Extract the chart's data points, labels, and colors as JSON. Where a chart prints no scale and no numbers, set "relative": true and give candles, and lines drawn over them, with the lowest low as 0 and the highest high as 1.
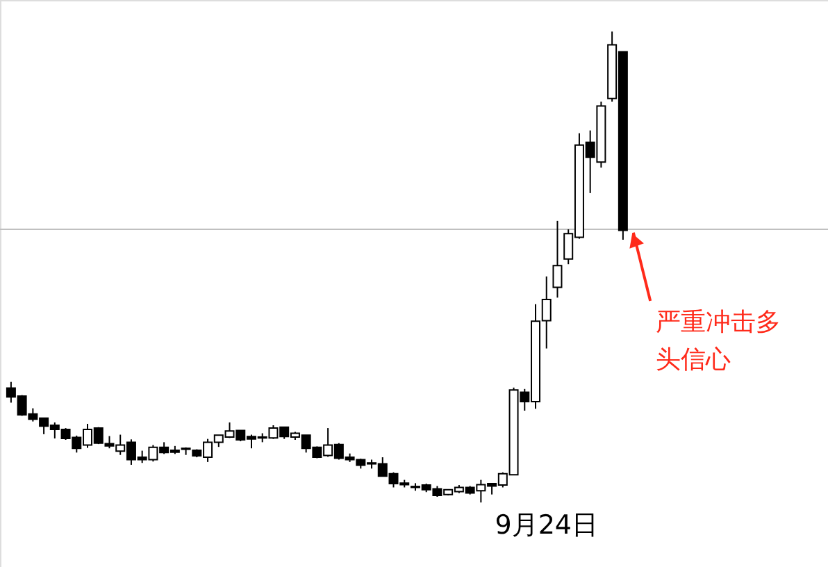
{
  "chart_data": {
    "type": "candlestick",
    "relative": true,
    "categories": [
      null,
      null,
      null,
      null,
      null,
      null,
      null,
      null,
      null,
      null,
      null,
      null,
      null,
      null,
      null,
      null,
      null,
      null,
      null,
      null,
      null,
      null,
      null,
      null,
      null,
      null,
      null,
      null,
      null,
      null,
      null,
      null,
      null,
      null,
      null,
      null,
      null,
      null,
      null,
      null,
      null,
      null,
      null,
      null,
      null,
      null,
      null,
      null,
      null,
      "9月24日",
      null,
      null,
      null,
      null,
      null,
      null,
      null
    ],
    "ohlc": [
      [
        0.243,
        0.256,
        0.212,
        0.224
      ],
      [
        0.226,
        0.228,
        0.184,
        0.186
      ],
      [
        0.188,
        0.2,
        0.172,
        0.177
      ],
      [
        0.179,
        0.179,
        0.145,
        0.162
      ],
      [
        0.164,
        0.17,
        0.136,
        0.155
      ],
      [
        0.155,
        0.158,
        0.133,
        0.136
      ],
      [
        0.138,
        0.142,
        0.106,
        0.115
      ],
      [
        0.122,
        0.167,
        0.116,
        0.155
      ],
      [
        0.158,
        0.16,
        0.124,
        0.126
      ],
      [
        0.125,
        0.141,
        0.115,
        0.12
      ],
      [
        0.109,
        0.144,
        0.101,
        0.122
      ],
      [
        0.128,
        0.134,
        0.08,
        0.091
      ],
      [
        0.096,
        0.11,
        0.084,
        0.091
      ],
      [
        0.091,
        0.122,
        0.087,
        0.117
      ],
      [
        0.117,
        0.128,
        0.103,
        0.106
      ],
      [
        0.111,
        0.12,
        0.103,
        0.107
      ],
      [
        0.115,
        0.117,
        0.101,
        0.113
      ],
      [
        0.111,
        0.113,
        0.096,
        0.099
      ],
      [
        0.096,
        0.135,
        0.086,
        0.128
      ],
      [
        0.128,
        0.143,
        0.118,
        0.143
      ],
      [
        0.139,
        0.17,
        0.137,
        0.152
      ],
      [
        0.153,
        0.153,
        0.13,
        0.133
      ],
      [
        0.14,
        0.144,
        0.115,
        0.135
      ],
      [
        0.139,
        0.147,
        0.128,
        0.137
      ],
      [
        0.137,
        0.164,
        0.135,
        0.158
      ],
      [
        0.16,
        0.16,
        0.135,
        0.14
      ],
      [
        0.139,
        0.15,
        0.133,
        0.147
      ],
      [
        0.143,
        0.143,
        0.106,
        0.115
      ],
      [
        0.117,
        0.119,
        0.094,
        0.096
      ],
      [
        0.1,
        0.158,
        0.097,
        0.122
      ],
      [
        0.123,
        0.126,
        0.091,
        0.094
      ],
      [
        0.096,
        0.104,
        0.086,
        0.091
      ],
      [
        0.091,
        0.093,
        0.072,
        0.079
      ],
      [
        0.084,
        0.091,
        0.072,
        0.082
      ],
      [
        0.082,
        0.096,
        0.056,
        0.056
      ],
      [
        0.061,
        0.064,
        0.032,
        0.04
      ],
      [
        0.041,
        0.048,
        0.032,
        0.038
      ],
      [
        0.034,
        0.041,
        0.025,
        0.032
      ],
      [
        0.037,
        0.04,
        0.022,
        0.027
      ],
      [
        0.029,
        0.035,
        0.012,
        0.015
      ],
      [
        0.017,
        0.027,
        0.015,
        0.027
      ],
      [
        0.023,
        0.037,
        0.02,
        0.032
      ],
      [
        0.032,
        0.035,
        0.017,
        0.02
      ],
      [
        0.025,
        0.048,
        0.0,
        0.038
      ],
      [
        0.04,
        0.04,
        0.017,
        0.035
      ],
      [
        0.037,
        0.064,
        0.032,
        0.061
      ],
      [
        0.059,
        0.244,
        0.059,
        0.239
      ],
      [
        0.234,
        0.241,
        0.195,
        0.214
      ],
      [
        0.214,
        0.421,
        0.199,
        0.385
      ],
      [
        0.386,
        0.48,
        0.327,
        0.431
      ],
      [
        0.457,
        0.598,
        0.435,
        0.503
      ],
      [
        0.517,
        0.58,
        0.506,
        0.571
      ],
      [
        0.563,
        0.784,
        0.56,
        0.759
      ],
      [
        0.765,
        0.79,
        0.657,
        0.733
      ],
      [
        0.723,
        0.851,
        0.711,
        0.842
      ],
      [
        0.858,
        1.0,
        0.851,
        0.972
      ],
      [
        0.957,
        0.957,
        0.558,
        0.578
      ]
    ],
    "ref_lines": [
      {
        "axis": "y",
        "value": 0.58,
        "color": "#c0c0c0"
      }
    ],
    "annotations": [
      "严重冲击多头信心"
    ]
  }
}
